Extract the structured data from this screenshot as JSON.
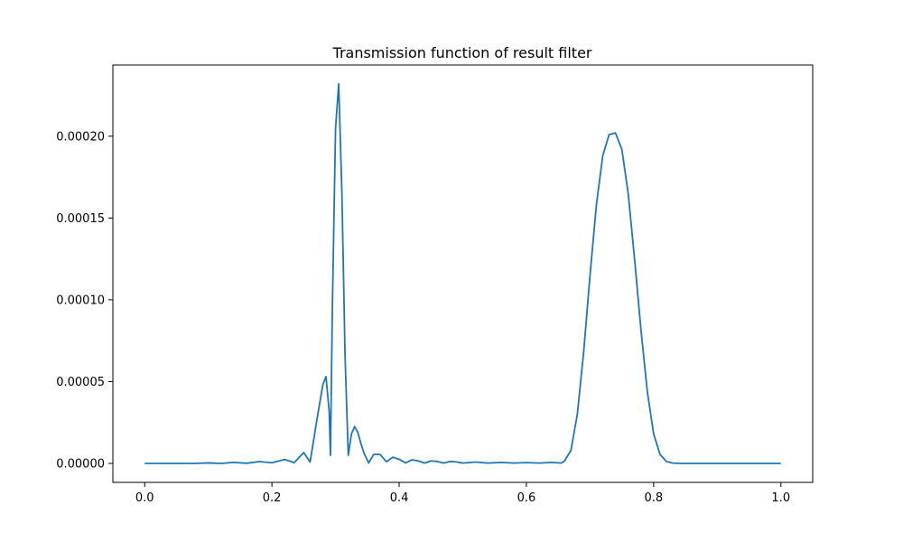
{
  "chart_data": {
    "type": "line",
    "title": "Transmission function of result filter",
    "xlabel": "",
    "ylabel": "",
    "xlim": [
      -0.05,
      1.05
    ],
    "ylim": [
      -1.16e-05,
      0.0002435
    ],
    "x_ticks": [
      0.0,
      0.2,
      0.4,
      0.6,
      0.8,
      1.0
    ],
    "x_tick_labels": [
      "0.0",
      "0.2",
      "0.4",
      "0.6",
      "0.8",
      "1.0"
    ],
    "y_ticks": [
      0.0,
      5e-05,
      0.0001,
      0.00015,
      0.0002
    ],
    "y_tick_labels": [
      "0.00000",
      "0.00005",
      "0.00010",
      "0.00015",
      "0.00020"
    ],
    "grid": false,
    "legend": "none",
    "line_color": "#1f77b4",
    "series": [
      {
        "x": [
          0.0,
          0.02,
          0.04,
          0.06,
          0.08,
          0.1,
          0.12,
          0.14,
          0.16,
          0.18,
          0.2,
          0.22,
          0.235,
          0.25,
          0.26,
          0.27,
          0.28,
          0.285,
          0.29,
          0.292,
          0.295,
          0.3,
          0.305,
          0.31,
          0.315,
          0.32,
          0.325,
          0.33,
          0.335,
          0.34,
          0.345,
          0.352,
          0.36,
          0.37,
          0.38,
          0.39,
          0.4,
          0.41,
          0.42,
          0.43,
          0.44,
          0.45,
          0.46,
          0.47,
          0.48,
          0.49,
          0.5,
          0.52,
          0.54,
          0.56,
          0.58,
          0.6,
          0.62,
          0.64,
          0.655,
          0.66,
          0.67,
          0.68,
          0.69,
          0.7,
          0.71,
          0.72,
          0.73,
          0.74,
          0.75,
          0.76,
          0.77,
          0.78,
          0.79,
          0.8,
          0.81,
          0.82,
          0.83,
          0.84,
          0.85,
          0.86,
          0.88,
          0.9,
          0.95,
          1.0
        ],
        "y": [
          0.0,
          0.0,
          0.0,
          0.0,
          0.0,
          3e-07,
          0.0,
          6e-07,
          1e-07,
          1.1e-06,
          4e-07,
          2.4e-06,
          5e-07,
          6.6e-06,
          8e-07,
          2.5e-05,
          4.8e-05,
          5.3e-05,
          3.2e-05,
          5e-06,
          9.5e-05,
          0.000205,
          0.000232,
          0.000165,
          6.5e-05,
          5e-06,
          1.8e-05,
          2.25e-05,
          1.9e-05,
          1.2e-05,
          6e-06,
          3e-07,
          5.5e-06,
          5.5e-06,
          1e-06,
          3.8e-06,
          2.5e-06,
          3e-07,
          2.2e-06,
          1.5e-06,
          2e-07,
          1.5e-06,
          1.2e-06,
          2e-07,
          1.2e-06,
          9e-07,
          2e-07,
          8e-07,
          2e-07,
          6e-07,
          2e-07,
          5e-07,
          2e-07,
          6e-07,
          2e-07,
          1.5e-06,
          8e-06,
          3e-05,
          6.8e-05,
          0.000115,
          0.000158,
          0.000188,
          0.000201,
          0.000202,
          0.000192,
          0.000165,
          0.000125,
          8.2e-05,
          4.4e-05,
          1.8e-05,
          5.5e-06,
          1.2e-06,
          2e-07,
          0.0,
          0.0,
          0.0,
          0.0,
          0.0,
          0.0,
          0.0
        ]
      }
    ]
  }
}
